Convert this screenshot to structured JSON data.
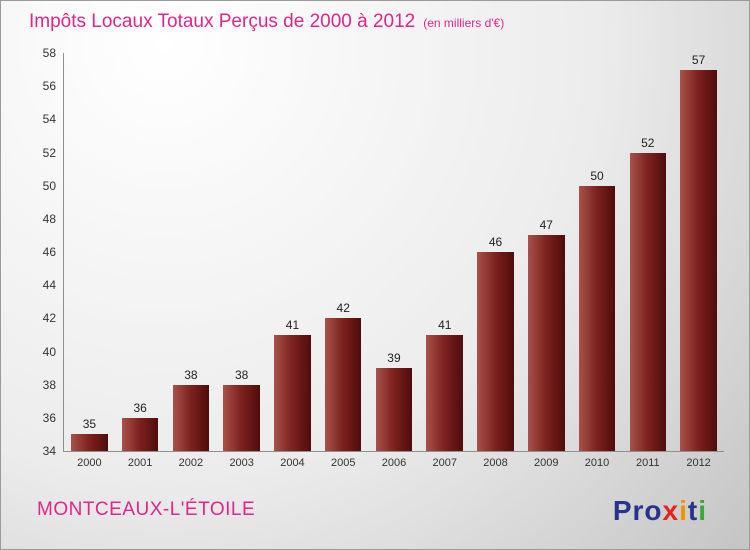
{
  "header": {
    "title": "Impôts Locaux Totaux Perçus de 2000 à 2012",
    "subtitle": "(en milliers d'€)"
  },
  "footer": {
    "location": "MONTCEAUX-L'ÉTOILE"
  },
  "logo": {
    "letters": [
      {
        "char": "P",
        "color": "#27348b"
      },
      {
        "char": "r",
        "color": "#27348b"
      },
      {
        "char": "o",
        "color": "#27348b"
      },
      {
        "char": "x",
        "color": "#e5231b"
      },
      {
        "char": "i",
        "color": "#f39200"
      },
      {
        "char": "t",
        "color": "#27348b"
      },
      {
        "char": "i",
        "color": "#3aaa35"
      }
    ]
  },
  "chart_data": {
    "type": "bar",
    "title": "Impôts Locaux Totaux Perçus de 2000 à 2012",
    "subtitle": "(en milliers d'€)",
    "categories": [
      "2000",
      "2001",
      "2002",
      "2003",
      "2004",
      "2005",
      "2006",
      "2007",
      "2008",
      "2009",
      "2010",
      "2011",
      "2012"
    ],
    "values": [
      35,
      36,
      38,
      38,
      41,
      42,
      39,
      41,
      46,
      47,
      50,
      52,
      57
    ],
    "xlabel": "",
    "ylabel": "",
    "ylim": [
      34,
      58
    ],
    "ytick_step": 2,
    "grid": false,
    "legend": false,
    "bar_gradient": [
      "#a8524a",
      "#4f0c0c"
    ],
    "title_color": "#e0258c"
  }
}
